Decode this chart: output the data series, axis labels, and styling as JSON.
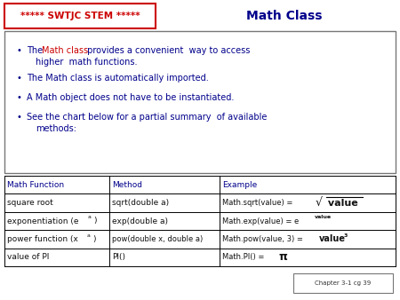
{
  "title": "Math Class",
  "title_color": "#00008B",
  "header_text": "***** SWTJC STEM *****",
  "header_color": "#CC0000",
  "bg_color": "#FFFFFF",
  "bullet_color": "#00008B",
  "red_color": "#CC0000",
  "black_color": "#111111",
  "footer": "Chapter 3-1 cg 39",
  "table_header_color": "#00008B"
}
